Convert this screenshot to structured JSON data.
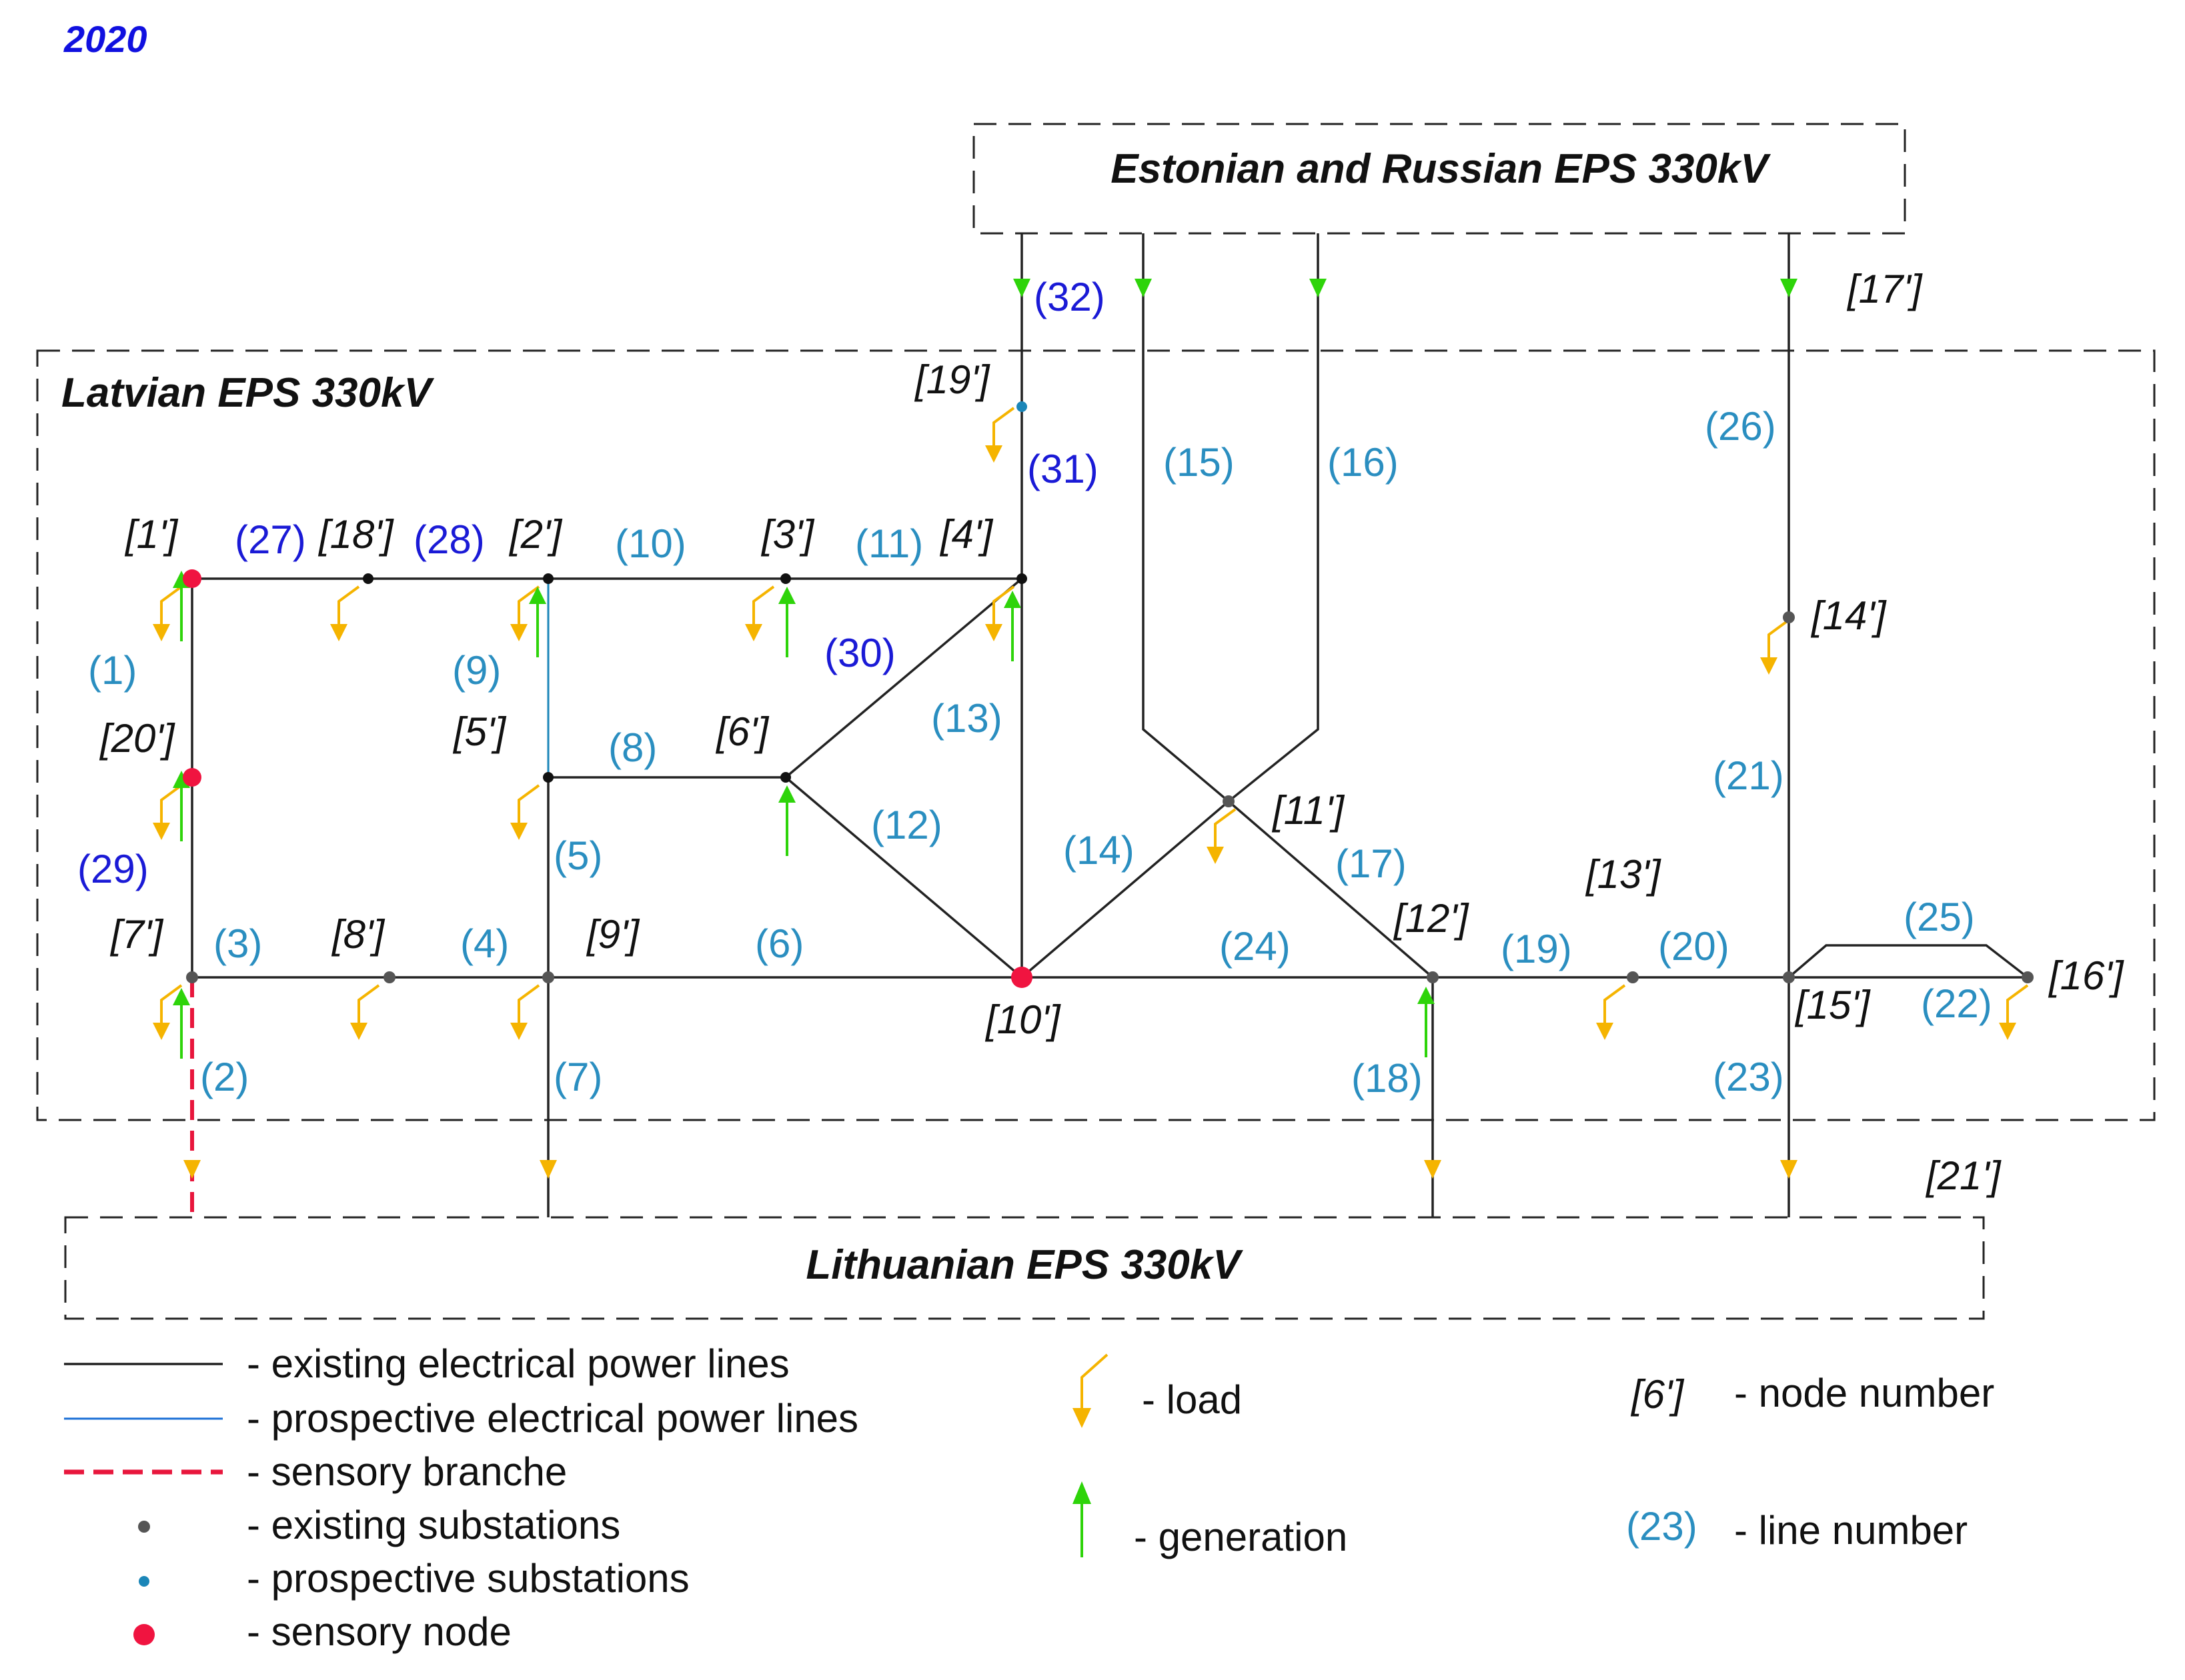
{
  "year": "2020",
  "regions": {
    "estonian_russian": "Estonian  and Russian EPS 330kV",
    "latvian": "Latvian EPS 330kV",
    "lithuanian": "Lithuanian EPS 330kV"
  },
  "colors": {
    "existing_line": "#222222",
    "prospective_line": "#1a6fd6",
    "sensory_branch": "#e8163c",
    "existing_substation": "#555555",
    "prospective_substation": "#1b86b8",
    "sensory_node": "#f01440",
    "load_arrow": "#f5b400",
    "generation_arrow": "#2ed40a",
    "line_label_dark_blue": "#1a1ad6",
    "line_label_teal": "#2a8ec0",
    "year_text": "#1010e0"
  },
  "nodes": {
    "n1": "[1']",
    "n2": "[2']",
    "n3": "[3']",
    "n4": "[4']",
    "n5": "[5']",
    "n6": "[6']",
    "n7": "[7']",
    "n8": "[8']",
    "n9": "[9']",
    "n10": "[10']",
    "n11": "[11']",
    "n12": "[12']",
    "n13": "[13']",
    "n14": "[14']",
    "n15": "[15']",
    "n16": "[16']",
    "n17": "[17']",
    "n18": "[18']",
    "n19": "[19']",
    "n20": "[20']",
    "n21": "[21']"
  },
  "lines": {
    "l1": "(1)",
    "l2": "(2)",
    "l3": "(3)",
    "l4": "(4)",
    "l5": "(5)",
    "l6": "(6)",
    "l7": "(7)",
    "l8": "(8)",
    "l9": "(9)",
    "l10": "(10)",
    "l11": "(11)",
    "l12": "(12)",
    "l13": "(13)",
    "l14": "(14)",
    "l15": "(15)",
    "l16": "(16)",
    "l17": "(17)",
    "l18": "(18)",
    "l19": "(19)",
    "l20": "(20)",
    "l21": "(21)",
    "l22": "(22)",
    "l23": "(23)",
    "l24": "(24)",
    "l25": "(25)",
    "l26": "(26)",
    "l27": "(27)",
    "l28": "(28)",
    "l29": "(29)",
    "l30": "(30)",
    "l31": "(31)",
    "l32": "(32)"
  },
  "legend": {
    "existing_lines": "- existing electrical power lines",
    "prospective_lines": "- prospective electrical power lines",
    "sensory_branch": "- sensory branche",
    "existing_substations": "- existing substations",
    "prospective_substations": "- prospective substations",
    "sensory_node": "- sensory node",
    "load": "- load",
    "generation": "- generation",
    "node_number_sample": "[6']",
    "node_number": "- node number",
    "line_number_sample": "(23)",
    "line_number": "- line number"
  }
}
